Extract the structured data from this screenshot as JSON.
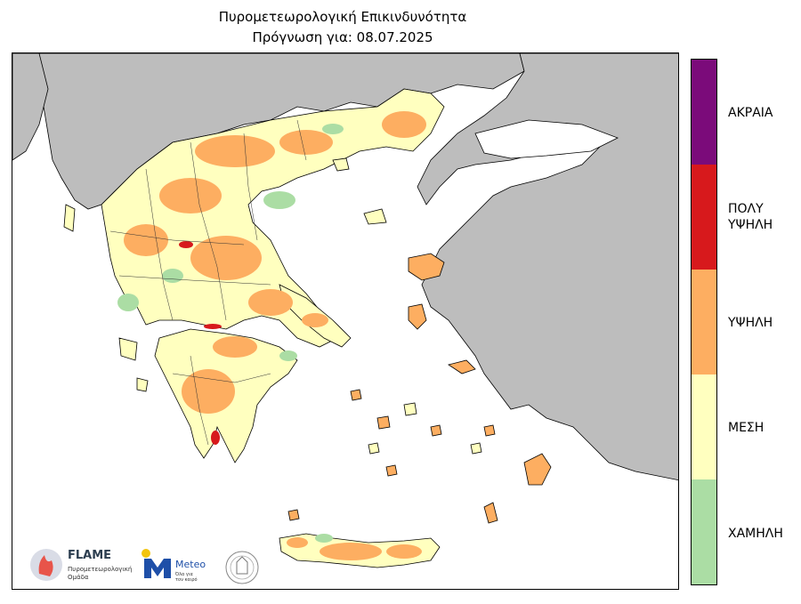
{
  "title": {
    "line1": "Πυρομετεωρολογική Επικινδυνότητα",
    "line2": "Πρόγνωση για: 08.07.2025"
  },
  "legend": {
    "levels": [
      {
        "label": "ΑΚΡΑΙΑ",
        "color": "#7b0b7a"
      },
      {
        "label_line1": "ΠΟΛΥ",
        "label_line2": "ΥΨΗΛΗ",
        "color": "#d7191c"
      },
      {
        "label": "ΥΨΗΛΗ",
        "color": "#fdae61"
      },
      {
        "label": "ΜΕΣΗ",
        "color": "#ffffbf"
      },
      {
        "label": "ΧΑΜΗΛΗ",
        "color": "#abdda4"
      }
    ]
  },
  "map": {
    "colors": {
      "sea": "#ffffff",
      "foreign_land": "#bdbdbd",
      "border": "#000000",
      "low": "#abdda4",
      "moderate": "#ffffbf",
      "high": "#fdae61",
      "very_high": "#d7191c"
    }
  },
  "logos": {
    "flame_name": "FLAME",
    "flame_sub1": "Πυρομετεωρολογική",
    "flame_sub2": "Ομάδα",
    "meteo_name": "Meteo",
    "meteo_sub1": "Όλα για",
    "meteo_sub2": "τον καιρό"
  }
}
